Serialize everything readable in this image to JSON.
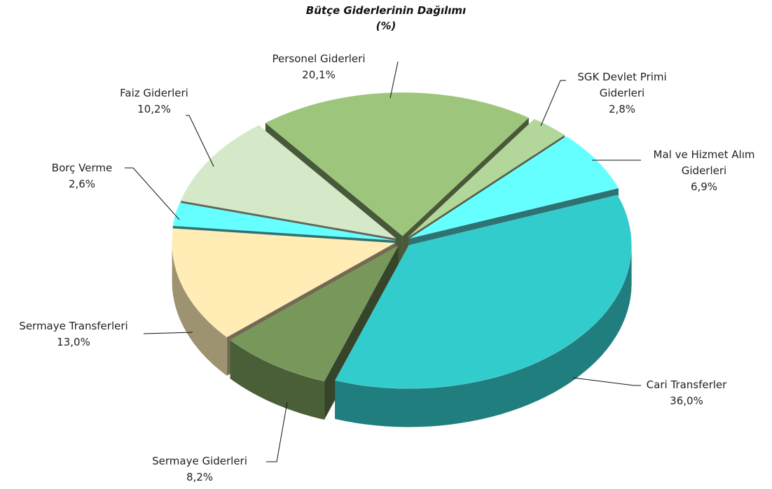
{
  "chart_data": {
    "type": "pie3d",
    "title": "Bütçe Giderlerinin Dağılımı",
    "subtitle": "(%)",
    "categories": [
      "Personel Giderleri",
      "SGK Devlet Primi Giderleri",
      "Mal ve Hizmet Alım Giderleri",
      "Cari Transferler",
      "Sermaye Giderleri",
      "Sermaye Transferleri",
      "Borç Verme",
      "Faiz Giderleri"
    ],
    "values": [
      20.1,
      2.8,
      6.9,
      36.0,
      8.2,
      13.0,
      2.6,
      10.2
    ],
    "value_labels": [
      "20,1%",
      "2,8%",
      "6,9%",
      "36,0%",
      "8,2%",
      "13,0%",
      "2,6%",
      "10,2%"
    ],
    "colors": [
      "#9dc57c",
      "#b3d79b",
      "#66ffff",
      "#33cccc",
      "#77985a",
      "#ffedb5",
      "#66ffff",
      "#d5e8c8"
    ]
  }
}
